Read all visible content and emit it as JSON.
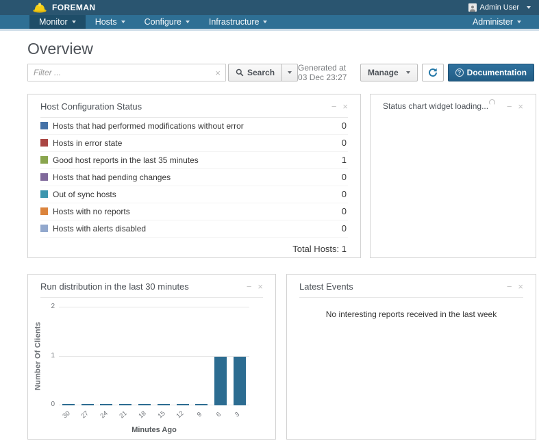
{
  "topbar": {
    "brand": "FOREMAN",
    "user": "Admin User"
  },
  "nav": {
    "items": [
      {
        "label": "Monitor",
        "active": true
      },
      {
        "label": "Hosts",
        "active": false
      },
      {
        "label": "Configure",
        "active": false
      },
      {
        "label": "Infrastructure",
        "active": false
      }
    ],
    "right": "Administer"
  },
  "page": {
    "title": "Overview"
  },
  "toolbar": {
    "filter_placeholder": "Filter ...",
    "search_label": "Search",
    "generated": "Generated at 03 Dec 23:27",
    "manage_label": "Manage",
    "documentation_label": "Documentation"
  },
  "widgets": {
    "host_config": {
      "title": "Host Configuration Status",
      "rows": [
        {
          "label": "Hosts that had performed modifications without error",
          "count": "0",
          "color": "#4572A7"
        },
        {
          "label": "Hosts in error state",
          "count": "0",
          "color": "#AA4643"
        },
        {
          "label": "Good host reports in the last 35 minutes",
          "count": "1",
          "color": "#89A54E"
        },
        {
          "label": "Hosts that had pending changes",
          "count": "0",
          "color": "#80699B"
        },
        {
          "label": "Out of sync hosts",
          "count": "0",
          "color": "#3D96AE"
        },
        {
          "label": "Hosts with no reports",
          "count": "0",
          "color": "#DB843D"
        },
        {
          "label": "Hosts with alerts disabled",
          "count": "0",
          "color": "#92A8CD"
        }
      ],
      "total": "Total Hosts: 1"
    },
    "status_chart": {
      "loading_text": "Status chart widget loading..."
    },
    "latest_events": {
      "title": "Latest Events",
      "empty_text": "No interesting reports received in the last week"
    }
  },
  "chart_data": {
    "type": "bar",
    "title": "Run distribution in the last 30 minutes",
    "categories": [
      "30",
      "27",
      "24",
      "21",
      "18",
      "15",
      "12",
      "9",
      "6",
      "3"
    ],
    "values": [
      0,
      0,
      0,
      0,
      0,
      0,
      0,
      0,
      1,
      1
    ],
    "xlabel": "Minutes Ago",
    "ylabel": "Number Of Clients",
    "ylim": [
      0,
      2
    ],
    "yticks": [
      0,
      1,
      2
    ],
    "grid": "horizontal",
    "legend": "none",
    "bar_color": "#2c6c91"
  },
  "colors": {
    "topbar_bg": "#2a5570",
    "navbar_bg": "#2e6f94",
    "nav_active_bg": "#1e4d68",
    "primary_button": "#225d85",
    "brand_hat": "#f5cf15"
  }
}
